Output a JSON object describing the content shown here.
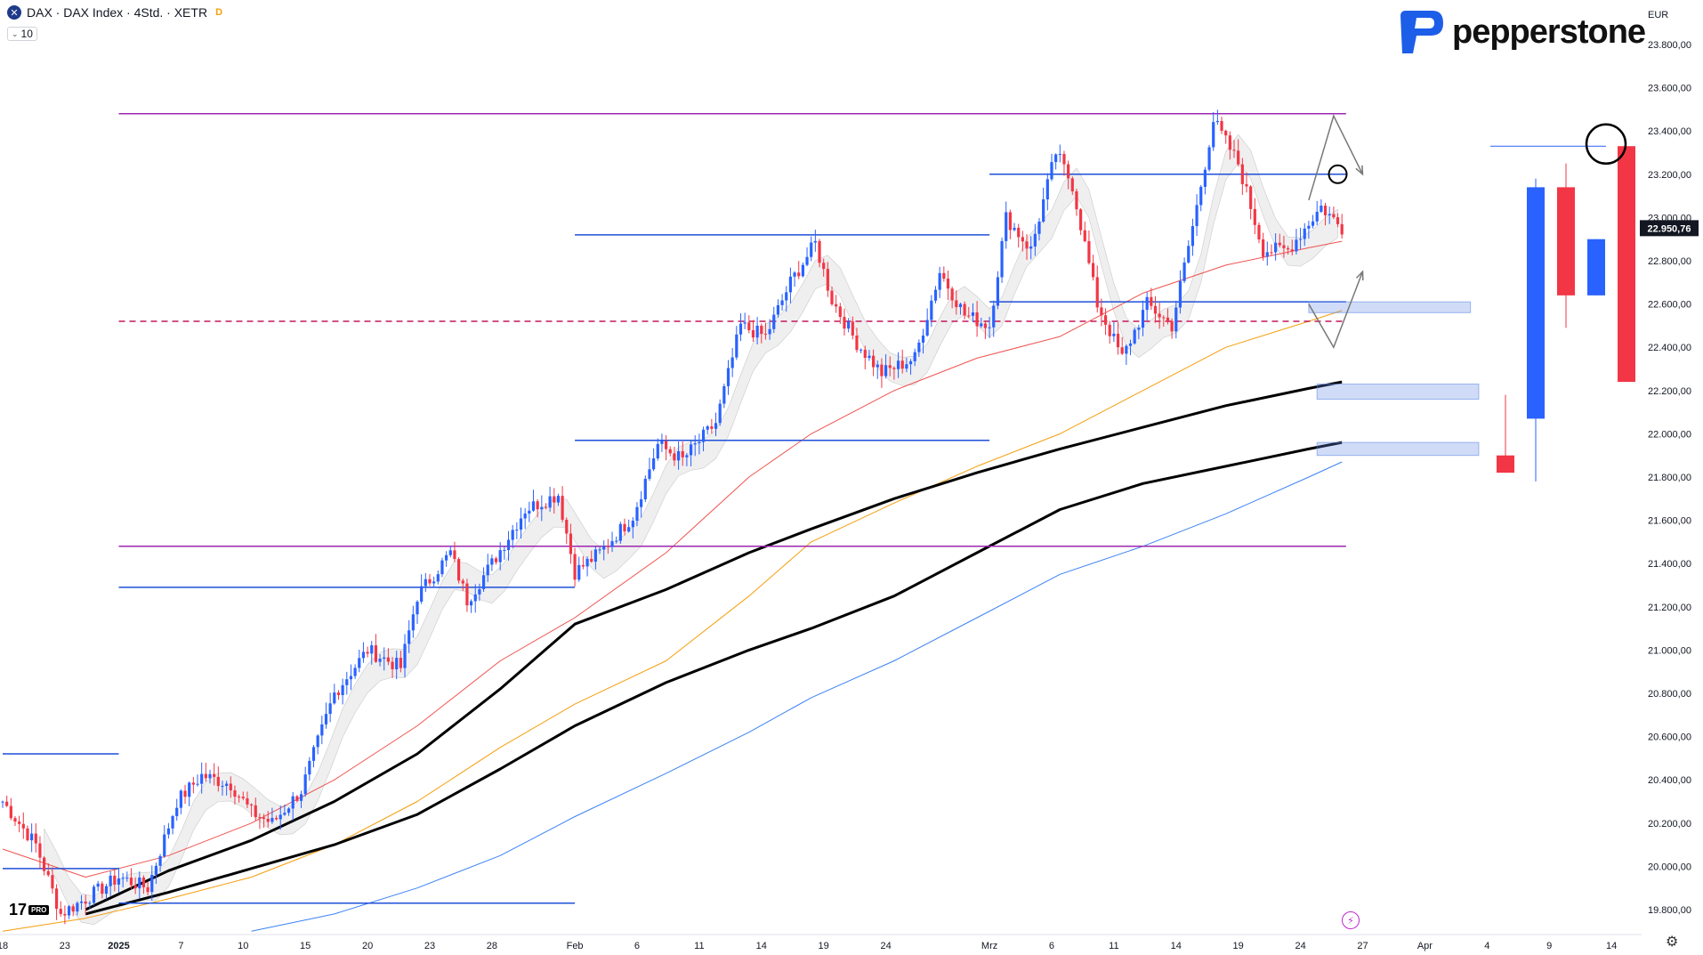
{
  "header": {
    "symbol_line": "DAX · DAX Index · 4Std. · XETR",
    "badge": "D",
    "interval_value": "10"
  },
  "brand": {
    "name": "pepperstone",
    "color": "#1d5ee8"
  },
  "tv_logo": {
    "text": "17",
    "badge": "PRO"
  },
  "currency": "EUR",
  "last_price_label": "22.950,76",
  "chart_data": {
    "type": "candlestick",
    "title": "",
    "ylabel": "",
    "xlabel": "",
    "ylim": [
      19700,
      23900
    ],
    "y_ticks": [
      19800,
      20000,
      20200,
      20400,
      20600,
      20800,
      21000,
      21200,
      21400,
      21600,
      21800,
      22000,
      22200,
      22400,
      22600,
      22800,
      23000,
      23200,
      23400,
      23600,
      23800
    ],
    "y_tick_labels": [
      "19.800,00",
      "20.000,00",
      "20.200,00",
      "20.400,00",
      "20.600,00",
      "20.800,00",
      "21.000,00",
      "21.200,00",
      "21.400,00",
      "21.600,00",
      "21.800,00",
      "22.000,00",
      "22.200,00",
      "22.400,00",
      "22.600,00",
      "22.800,00",
      "23.000,00",
      "23.200,00",
      "23.400,00",
      "23.600,00",
      "23.800,00"
    ],
    "x_ticks": [
      {
        "label": "18",
        "idx": 0
      },
      {
        "label": "23",
        "idx": 15
      },
      {
        "label": "2025",
        "idx": 28
      },
      {
        "label": "7",
        "idx": 43
      },
      {
        "label": "10",
        "idx": 58
      },
      {
        "label": "15",
        "idx": 73
      },
      {
        "label": "20",
        "idx": 88
      },
      {
        "label": "23",
        "idx": 103
      },
      {
        "label": "28",
        "idx": 118
      },
      {
        "label": "Feb",
        "idx": 138
      },
      {
        "label": "6",
        "idx": 153
      },
      {
        "label": "11",
        "idx": 168
      },
      {
        "label": "14",
        "idx": 183
      },
      {
        "label": "19",
        "idx": 198
      },
      {
        "label": "24",
        "idx": 213
      },
      {
        "label": "Mrz",
        "idx": 238
      },
      {
        "label": "6",
        "idx": 253
      },
      {
        "label": "11",
        "idx": 268
      },
      {
        "label": "14",
        "idx": 283
      },
      {
        "label": "19",
        "idx": 298
      },
      {
        "label": "24",
        "idx": 313
      },
      {
        "label": "27",
        "idx": 328
      },
      {
        "label": "Apr",
        "idx": 343
      },
      {
        "label": "4",
        "idx": 358
      },
      {
        "label": "9",
        "idx": 373
      },
      {
        "label": "14",
        "idx": 388
      }
    ],
    "bars_total": 324,
    "last_price": 22950.76,
    "waypoints": [
      [
        0,
        20300
      ],
      [
        8,
        20100
      ],
      [
        14,
        19780
      ],
      [
        20,
        19850
      ],
      [
        28,
        19950
      ],
      [
        35,
        19900
      ],
      [
        42,
        20300
      ],
      [
        48,
        20420
      ],
      [
        55,
        20380
      ],
      [
        60,
        20250
      ],
      [
        65,
        20200
      ],
      [
        72,
        20350
      ],
      [
        80,
        20800
      ],
      [
        88,
        21000
      ],
      [
        96,
        20920
      ],
      [
        100,
        21250
      ],
      [
        108,
        21450
      ],
      [
        112,
        21230
      ],
      [
        118,
        21400
      ],
      [
        126,
        21650
      ],
      [
        134,
        21720
      ],
      [
        138,
        21360
      ],
      [
        144,
        21450
      ],
      [
        152,
        21620
      ],
      [
        158,
        21950
      ],
      [
        164,
        21880
      ],
      [
        172,
        22050
      ],
      [
        178,
        22500
      ],
      [
        184,
        22450
      ],
      [
        190,
        22700
      ],
      [
        196,
        22880
      ],
      [
        200,
        22620
      ],
      [
        206,
        22420
      ],
      [
        212,
        22280
      ],
      [
        220,
        22350
      ],
      [
        226,
        22750
      ],
      [
        232,
        22550
      ],
      [
        238,
        22500
      ],
      [
        242,
        23000
      ],
      [
        248,
        22850
      ],
      [
        254,
        23300
      ],
      [
        258,
        23150
      ],
      [
        264,
        22600
      ],
      [
        270,
        22350
      ],
      [
        276,
        22600
      ],
      [
        282,
        22500
      ],
      [
        288,
        23050
      ],
      [
        292,
        23450
      ],
      [
        298,
        23250
      ],
      [
        304,
        22850
      ],
      [
        310,
        22850
      ],
      [
        318,
        23050
      ],
      [
        323,
        22950
      ]
    ],
    "horizontal_levels": [
      {
        "price": 23480,
        "color": "#9c27b0",
        "style": "solid",
        "from_idx": 28,
        "to_idx": 324
      },
      {
        "price": 21480,
        "color": "#9c27b0",
        "style": "solid",
        "from_idx": 28,
        "to_idx": 324
      },
      {
        "price": 22520,
        "color": "#c2185b",
        "style": "dashed",
        "from_idx": 28,
        "to_idx": 324
      },
      {
        "price": 23200,
        "color": "#1e4fd8",
        "style": "solid",
        "from_idx": 238,
        "to_idx": 324
      },
      {
        "price": 22610,
        "color": "#1e4fd8",
        "style": "solid",
        "from_idx": 238,
        "to_idx": 324
      },
      {
        "price": 22920,
        "color": "#1e4fd8",
        "style": "solid",
        "from_idx": 138,
        "to_idx": 238
      },
      {
        "price": 21970,
        "color": "#1e4fd8",
        "style": "solid",
        "from_idx": 138,
        "to_idx": 238
      },
      {
        "price": 21290,
        "color": "#1e4fd8",
        "style": "solid",
        "from_idx": 28,
        "to_idx": 138
      },
      {
        "price": 20520,
        "color": "#1e4fd8",
        "style": "solid",
        "from_idx": 0,
        "to_idx": 28
      },
      {
        "price": 19990,
        "color": "#1e4fd8",
        "style": "solid",
        "from_idx": 0,
        "to_idx": 28
      },
      {
        "price": 19830,
        "color": "#1e4fd8",
        "style": "solid",
        "from_idx": 28,
        "to_idx": 138
      }
    ],
    "zones": [
      {
        "from_price": 22560,
        "to_price": 22610,
        "from_idx": 315,
        "to_idx": 354
      },
      {
        "from_price": 22160,
        "to_price": 22230,
        "from_idx": 317,
        "to_idx": 356
      },
      {
        "from_price": 21900,
        "to_price": 21960,
        "from_idx": 317,
        "to_idx": 356
      }
    ],
    "ma_lines": [
      {
        "name": "",
        "color": "#ef5350",
        "width": 1,
        "points": [
          [
            0,
            20080
          ],
          [
            20,
            19950
          ],
          [
            40,
            20050
          ],
          [
            60,
            20200
          ],
          [
            80,
            20400
          ],
          [
            100,
            20650
          ],
          [
            120,
            20950
          ],
          [
            138,
            21150
          ],
          [
            160,
            21450
          ],
          [
            180,
            21800
          ],
          [
            195,
            22000
          ],
          [
            215,
            22200
          ],
          [
            235,
            22350
          ],
          [
            255,
            22450
          ],
          [
            275,
            22650
          ],
          [
            295,
            22780
          ],
          [
            315,
            22860
          ],
          [
            323,
            22890
          ]
        ]
      },
      {
        "name": "",
        "color": "#f59e0b",
        "width": 1,
        "points": [
          [
            0,
            19700
          ],
          [
            20,
            19760
          ],
          [
            40,
            19850
          ],
          [
            60,
            19950
          ],
          [
            80,
            20100
          ],
          [
            100,
            20300
          ],
          [
            120,
            20550
          ],
          [
            138,
            20750
          ],
          [
            160,
            20950
          ],
          [
            180,
            21250
          ],
          [
            195,
            21500
          ],
          [
            215,
            21680
          ],
          [
            235,
            21850
          ],
          [
            255,
            22000
          ],
          [
            275,
            22200
          ],
          [
            295,
            22400
          ],
          [
            315,
            22520
          ],
          [
            323,
            22570
          ]
        ]
      },
      {
        "name": "",
        "color": "#000000",
        "width": 3,
        "points": [
          [
            20,
            19800
          ],
          [
            40,
            19980
          ],
          [
            60,
            20120
          ],
          [
            80,
            20300
          ],
          [
            100,
            20520
          ],
          [
            120,
            20820
          ],
          [
            138,
            21120
          ],
          [
            160,
            21280
          ],
          [
            180,
            21450
          ],
          [
            195,
            21560
          ],
          [
            215,
            21700
          ],
          [
            235,
            21820
          ],
          [
            255,
            21930
          ],
          [
            275,
            22030
          ],
          [
            295,
            22130
          ],
          [
            315,
            22210
          ],
          [
            323,
            22240
          ]
        ]
      },
      {
        "name": "",
        "color": "#000000",
        "width": 3,
        "points": [
          [
            20,
            19780
          ],
          [
            40,
            19880
          ],
          [
            60,
            19990
          ],
          [
            80,
            20100
          ],
          [
            100,
            20240
          ],
          [
            120,
            20450
          ],
          [
            138,
            20650
          ],
          [
            160,
            20850
          ],
          [
            180,
            21000
          ],
          [
            195,
            21100
          ],
          [
            215,
            21250
          ],
          [
            235,
            21450
          ],
          [
            255,
            21650
          ],
          [
            275,
            21770
          ],
          [
            295,
            21850
          ],
          [
            315,
            21930
          ],
          [
            323,
            21960
          ]
        ]
      },
      {
        "name": "",
        "color": "#3b82f6",
        "width": 1,
        "points": [
          [
            60,
            19700
          ],
          [
            80,
            19780
          ],
          [
            100,
            19900
          ],
          [
            120,
            20050
          ],
          [
            138,
            20230
          ],
          [
            160,
            20430
          ],
          [
            180,
            20620
          ],
          [
            195,
            20780
          ],
          [
            215,
            20950
          ],
          [
            235,
            21150
          ],
          [
            255,
            21350
          ],
          [
            275,
            21480
          ],
          [
            295,
            21630
          ],
          [
            315,
            21800
          ],
          [
            323,
            21870
          ]
        ]
      }
    ],
    "right_preview": {
      "candles": [
        {
          "o": 21900,
          "c": 21820,
          "h": 22180,
          "l": 21820,
          "dir": "down"
        },
        {
          "o": 22070,
          "c": 23140,
          "h": 23180,
          "l": 21780,
          "dir": "up"
        },
        {
          "o": 23140,
          "c": 22640,
          "h": 23250,
          "l": 22490,
          "dir": "down"
        },
        {
          "o": 22640,
          "c": 22900,
          "h": 22900,
          "l": 22640,
          "dir": "up"
        },
        {
          "o": 23330,
          "c": 22240,
          "h": 23330,
          "l": 22240,
          "dir": "down"
        }
      ],
      "level_price": 23330,
      "circle_price": 23340
    },
    "projection_arrows": [
      {
        "points": [
          [
            315,
            23080
          ],
          [
            321,
            23470
          ],
          [
            328,
            23200
          ]
        ]
      },
      {
        "points": [
          [
            315,
            22600
          ],
          [
            321,
            22400
          ],
          [
            328,
            22750
          ]
        ]
      }
    ],
    "circle_mark": {
      "idx": 322,
      "price": 23200
    }
  }
}
